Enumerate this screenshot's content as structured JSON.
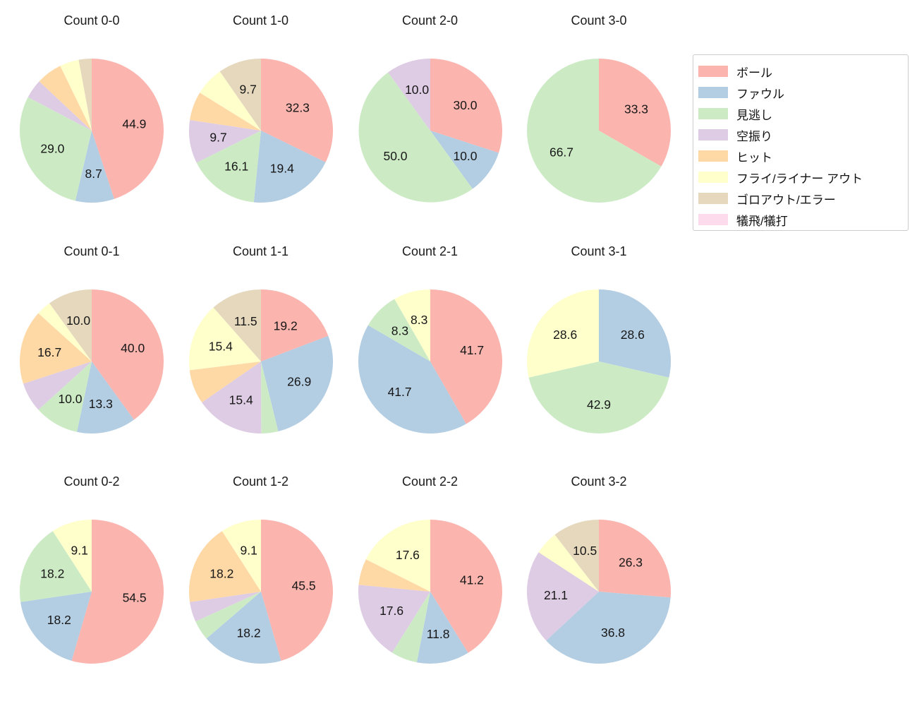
{
  "legend": {
    "items": [
      {
        "label": "ボール",
        "color": "#fbb4ae"
      },
      {
        "label": "ファウル",
        "color": "#b3cde3"
      },
      {
        "label": "見逃し",
        "color": "#ccebc5"
      },
      {
        "label": "空振り",
        "color": "#decbe4"
      },
      {
        "label": "ヒット",
        "color": "#fed9a6"
      },
      {
        "label": "フライ/ライナー アウト",
        "color": "#ffffcc"
      },
      {
        "label": "ゴロアウト/エラー",
        "color": "#e5d8bd"
      },
      {
        "label": "犠飛/犠打",
        "color": "#fddaec"
      }
    ]
  },
  "label_rules": {
    "min_percent_shown": 8,
    "decimals": 1,
    "pct_distance": 0.6,
    "start_angle_deg": 0,
    "direction": "clockwise-from-top"
  },
  "chart_data": [
    {
      "type": "pie",
      "title": "Count 0-0",
      "slices": [
        {
          "category": "ボール",
          "value": 44.9
        },
        {
          "category": "ファウル",
          "value": 8.7
        },
        {
          "category": "見逃し",
          "value": 29.0
        },
        {
          "category": "空振り",
          "value": 4.3
        },
        {
          "category": "ヒット",
          "value": 5.8
        },
        {
          "category": "フライ/ライナー アウト",
          "value": 4.3
        },
        {
          "category": "ゴロアウト/エラー",
          "value": 2.9
        }
      ]
    },
    {
      "type": "pie",
      "title": "Count 1-0",
      "slices": [
        {
          "category": "ボール",
          "value": 32.3
        },
        {
          "category": "ファウル",
          "value": 19.4
        },
        {
          "category": "見逃し",
          "value": 16.1
        },
        {
          "category": "空振り",
          "value": 9.7
        },
        {
          "category": "ヒット",
          "value": 6.5
        },
        {
          "category": "フライ/ライナー アウト",
          "value": 6.5
        },
        {
          "category": "ゴロアウト/エラー",
          "value": 9.7
        }
      ]
    },
    {
      "type": "pie",
      "title": "Count 2-0",
      "slices": [
        {
          "category": "ボール",
          "value": 30.0
        },
        {
          "category": "ファウル",
          "value": 10.0
        },
        {
          "category": "見逃し",
          "value": 50.0
        },
        {
          "category": "空振り",
          "value": 10.0
        }
      ]
    },
    {
      "type": "pie",
      "title": "Count 3-0",
      "slices": [
        {
          "category": "ボール",
          "value": 33.3
        },
        {
          "category": "見逃し",
          "value": 66.7
        }
      ]
    },
    {
      "type": "pie",
      "title": "Count 0-1",
      "slices": [
        {
          "category": "ボール",
          "value": 40.0
        },
        {
          "category": "ファウル",
          "value": 13.3
        },
        {
          "category": "見逃し",
          "value": 10.0
        },
        {
          "category": "空振り",
          "value": 6.7
        },
        {
          "category": "ヒット",
          "value": 16.7
        },
        {
          "category": "フライ/ライナー アウト",
          "value": 3.3
        },
        {
          "category": "ゴロアウト/エラー",
          "value": 10.0
        }
      ]
    },
    {
      "type": "pie",
      "title": "Count 1-1",
      "slices": [
        {
          "category": "ボール",
          "value": 19.2
        },
        {
          "category": "ファウル",
          "value": 26.9
        },
        {
          "category": "見逃し",
          "value": 3.8
        },
        {
          "category": "空振り",
          "value": 15.4
        },
        {
          "category": "ヒット",
          "value": 7.7
        },
        {
          "category": "フライ/ライナー アウト",
          "value": 15.4
        },
        {
          "category": "ゴロアウト/エラー",
          "value": 11.5
        }
      ]
    },
    {
      "type": "pie",
      "title": "Count 2-1",
      "slices": [
        {
          "category": "ボール",
          "value": 41.7
        },
        {
          "category": "ファウル",
          "value": 41.7
        },
        {
          "category": "見逃し",
          "value": 8.3
        },
        {
          "category": "フライ/ライナー アウト",
          "value": 8.3
        }
      ]
    },
    {
      "type": "pie",
      "title": "Count 3-1",
      "slices": [
        {
          "category": "ファウル",
          "value": 28.6
        },
        {
          "category": "見逃し",
          "value": 42.9
        },
        {
          "category": "フライ/ライナー アウト",
          "value": 28.6
        }
      ]
    },
    {
      "type": "pie",
      "title": "Count 0-2",
      "slices": [
        {
          "category": "ボール",
          "value": 54.5
        },
        {
          "category": "ファウル",
          "value": 18.2
        },
        {
          "category": "見逃し",
          "value": 18.2
        },
        {
          "category": "フライ/ライナー アウト",
          "value": 9.1
        }
      ]
    },
    {
      "type": "pie",
      "title": "Count 1-2",
      "slices": [
        {
          "category": "ボール",
          "value": 45.5
        },
        {
          "category": "ファウル",
          "value": 18.2
        },
        {
          "category": "見逃し",
          "value": 4.5
        },
        {
          "category": "空振り",
          "value": 4.5
        },
        {
          "category": "ヒット",
          "value": 18.2
        },
        {
          "category": "フライ/ライナー アウト",
          "value": 9.1
        }
      ]
    },
    {
      "type": "pie",
      "title": "Count 2-2",
      "slices": [
        {
          "category": "ボール",
          "value": 41.2
        },
        {
          "category": "ファウル",
          "value": 11.8
        },
        {
          "category": "見逃し",
          "value": 5.9
        },
        {
          "category": "空振り",
          "value": 17.6
        },
        {
          "category": "ヒット",
          "value": 5.9
        },
        {
          "category": "フライ/ライナー アウト",
          "value": 17.6
        }
      ]
    },
    {
      "type": "pie",
      "title": "Count 3-2",
      "slices": [
        {
          "category": "ボール",
          "value": 26.3
        },
        {
          "category": "ファウル",
          "value": 36.8
        },
        {
          "category": "空振り",
          "value": 21.1
        },
        {
          "category": "フライ/ライナー アウト",
          "value": 5.3
        },
        {
          "category": "ゴロアウト/エラー",
          "value": 10.5
        }
      ]
    }
  ]
}
